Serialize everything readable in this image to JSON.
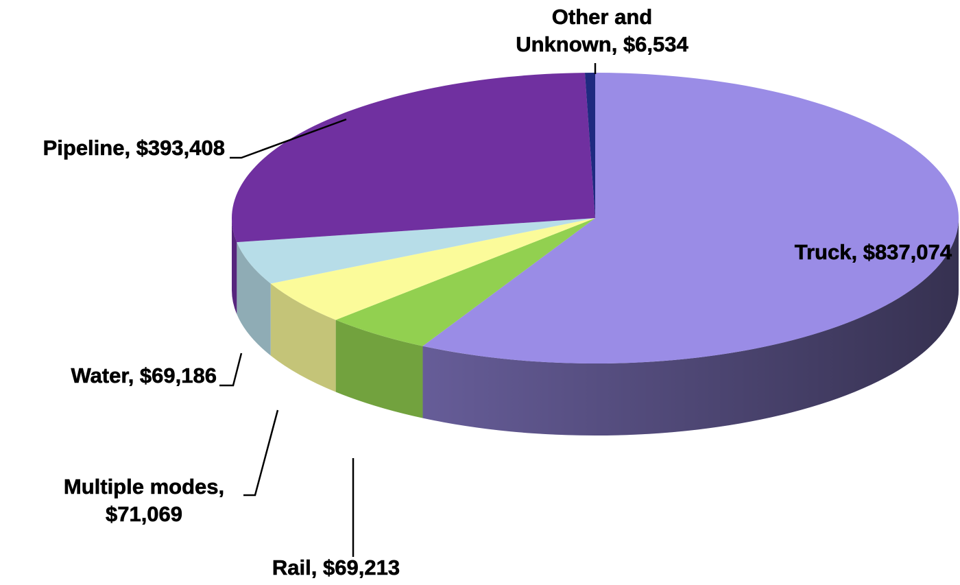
{
  "chart_data": {
    "type": "pie3d",
    "values": [
      837074,
      69213,
      71069,
      69186,
      393408,
      6534
    ],
    "value_labels": [
      [
        "Truck, $837,074"
      ],
      [
        "Rail, $69,213"
      ],
      [
        "Multiple modes,",
        "$71,069"
      ],
      [
        "Water, $69,186"
      ],
      [
        "Pipeline, $393,408"
      ],
      [
        "Other and",
        "Unknown, $6,534"
      ]
    ],
    "colors": [
      "#9a8ce6",
      "#92d050",
      "#fbfb9a",
      "#b7dde8",
      "#7030a0",
      "#1f2a80"
    ]
  }
}
